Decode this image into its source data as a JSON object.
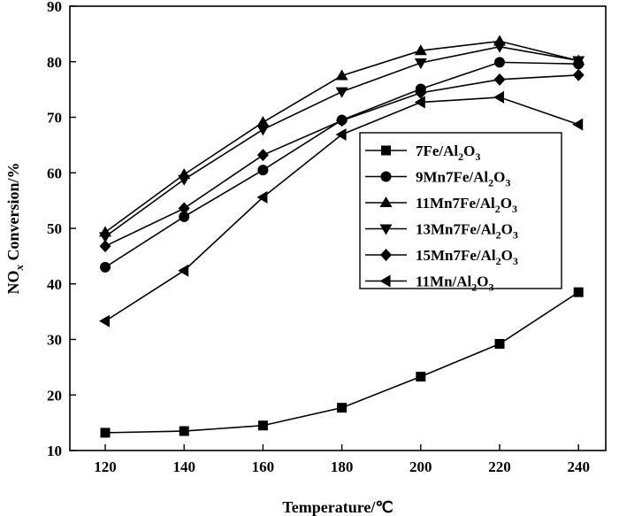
{
  "chart_data": {
    "type": "line",
    "title": "",
    "xlabel": "Temperature/℃",
    "ylabel_parts": [
      "NO",
      "x",
      " Conversion/%"
    ],
    "x": [
      120,
      140,
      160,
      180,
      200,
      220,
      240
    ],
    "xticks": [
      "120",
      "140",
      "160",
      "180",
      "200",
      "220",
      "240"
    ],
    "ylim": [
      10,
      90
    ],
    "yticks": [
      "10",
      "20",
      "30",
      "40",
      "50",
      "60",
      "70",
      "80",
      "90"
    ],
    "grid": false,
    "legend_position": "center-right",
    "series": [
      {
        "name_parts": [
          "7Fe/Al",
          "2",
          "O",
          "3"
        ],
        "marker": "square",
        "values": [
          13.2,
          13.5,
          14.5,
          17.7,
          23.3,
          29.2,
          38.5
        ]
      },
      {
        "name_parts": [
          "9Mn7Fe/Al",
          "2",
          "O",
          "3"
        ],
        "marker": "circle",
        "values": [
          43.0,
          52.1,
          60.5,
          69.5,
          75.1,
          79.9,
          79.6
        ]
      },
      {
        "name_parts": [
          "11Mn7Fe/Al",
          "2",
          "O",
          "3"
        ],
        "marker": "triangle-up",
        "values": [
          49.3,
          59.7,
          69.1,
          77.5,
          82.0,
          83.7,
          80.2
        ]
      },
      {
        "name_parts": [
          "13Mn7Fe/Al",
          "2",
          "O",
          "3"
        ],
        "marker": "triangle-down",
        "values": [
          48.5,
          58.8,
          67.8,
          74.6,
          79.8,
          82.7,
          80.2
        ]
      },
      {
        "name_parts": [
          "15Mn7Fe/Al",
          "2",
          "O",
          "3"
        ],
        "marker": "diamond",
        "values": [
          46.8,
          53.6,
          63.2,
          69.4,
          74.4,
          76.8,
          77.6
        ]
      },
      {
        "name_parts": [
          "11Mn/Al",
          "2",
          "O",
          "3"
        ],
        "marker": "triangle-left",
        "values": [
          33.3,
          42.4,
          55.6,
          66.9,
          72.7,
          73.6,
          68.7
        ]
      }
    ]
  }
}
